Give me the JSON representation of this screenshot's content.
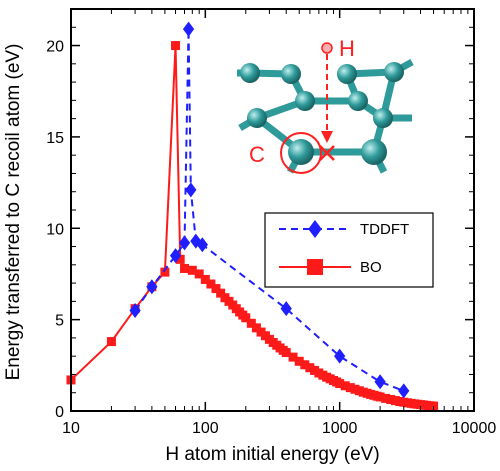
{
  "chart_data": {
    "type": "line",
    "xscale": "log",
    "xlabel": "H atom initial energy (eV)",
    "ylabel": "Energy transferred to C recoil atom (eV)",
    "xlim": [
      10,
      10000
    ],
    "ylim": [
      0,
      22
    ],
    "x_ticks": [
      10,
      100,
      1000,
      10000
    ],
    "x_tick_labels": [
      "10",
      "100",
      "1000",
      "10000"
    ],
    "y_ticks": [
      0,
      5,
      10,
      15,
      20
    ],
    "y_tick_labels": [
      "0",
      "5",
      "10",
      "15",
      "20"
    ],
    "grid": false,
    "legend_position": "middle-right",
    "series": [
      {
        "name": "TDDFT",
        "style": "dashed",
        "marker": "diamond",
        "color": "#1f1fff",
        "points": [
          [
            30,
            5.5
          ],
          [
            40,
            6.8
          ],
          [
            60,
            8.5
          ],
          [
            70,
            9.2
          ],
          [
            75,
            20.9
          ],
          [
            78,
            12.1
          ],
          [
            85,
            9.3
          ],
          [
            95,
            9.1
          ],
          [
            400,
            5.6
          ],
          [
            1000,
            3.0
          ],
          [
            2000,
            1.6
          ],
          [
            3000,
            1.1
          ]
        ]
      },
      {
        "name": "BO",
        "style": "solid",
        "marker": "square",
        "color": "#ff1a1a",
        "points": [
          [
            10,
            1.7
          ],
          [
            20,
            3.8
          ],
          [
            30,
            5.6
          ],
          [
            40,
            6.8
          ],
          [
            50,
            7.6
          ],
          [
            60,
            20.0
          ],
          [
            65,
            8.3
          ],
          [
            70,
            7.8
          ],
          [
            80,
            7.7
          ],
          [
            90,
            7.5
          ],
          [
            100,
            7.2
          ],
          [
            110,
            6.95
          ],
          [
            120,
            6.7
          ],
          [
            130,
            6.45
          ],
          [
            140,
            6.2
          ],
          [
            150,
            6.0
          ],
          [
            160,
            5.8
          ],
          [
            170,
            5.6
          ],
          [
            180,
            5.42
          ],
          [
            190,
            5.25
          ],
          [
            200,
            5.1
          ],
          [
            220,
            4.8
          ],
          [
            240,
            4.55
          ],
          [
            260,
            4.32
          ],
          [
            280,
            4.12
          ],
          [
            300,
            3.92
          ],
          [
            320,
            3.75
          ],
          [
            340,
            3.6
          ],
          [
            360,
            3.45
          ],
          [
            380,
            3.32
          ],
          [
            400,
            3.2
          ],
          [
            450,
            2.95
          ],
          [
            500,
            2.72
          ],
          [
            550,
            2.53
          ],
          [
            600,
            2.37
          ],
          [
            650,
            2.22
          ],
          [
            700,
            2.08
          ],
          [
            750,
            1.96
          ],
          [
            800,
            1.85
          ],
          [
            850,
            1.76
          ],
          [
            900,
            1.67
          ],
          [
            950,
            1.59
          ],
          [
            1000,
            1.5
          ],
          [
            1100,
            1.38
          ],
          [
            1200,
            1.28
          ],
          [
            1300,
            1.19
          ],
          [
            1400,
            1.11
          ],
          [
            1500,
            1.03
          ],
          [
            1600,
            0.97
          ],
          [
            1700,
            0.91
          ],
          [
            1800,
            0.86
          ],
          [
            1900,
            0.81
          ],
          [
            2000,
            0.77
          ],
          [
            2200,
            0.69
          ],
          [
            2400,
            0.63
          ],
          [
            2600,
            0.57
          ],
          [
            2800,
            0.52
          ],
          [
            3000,
            0.48
          ],
          [
            3200,
            0.45
          ],
          [
            3400,
            0.42
          ],
          [
            3600,
            0.39
          ],
          [
            3800,
            0.37
          ],
          [
            4000,
            0.35
          ],
          [
            4200,
            0.33
          ],
          [
            4400,
            0.31
          ],
          [
            4600,
            0.29
          ],
          [
            4800,
            0.28
          ],
          [
            5000,
            0.27
          ]
        ]
      }
    ],
    "inset": {
      "description_labels": {
        "h": "H",
        "c": "C"
      },
      "atom_color": "#2f9a9a",
      "highlight_color": "#ff2020"
    }
  }
}
